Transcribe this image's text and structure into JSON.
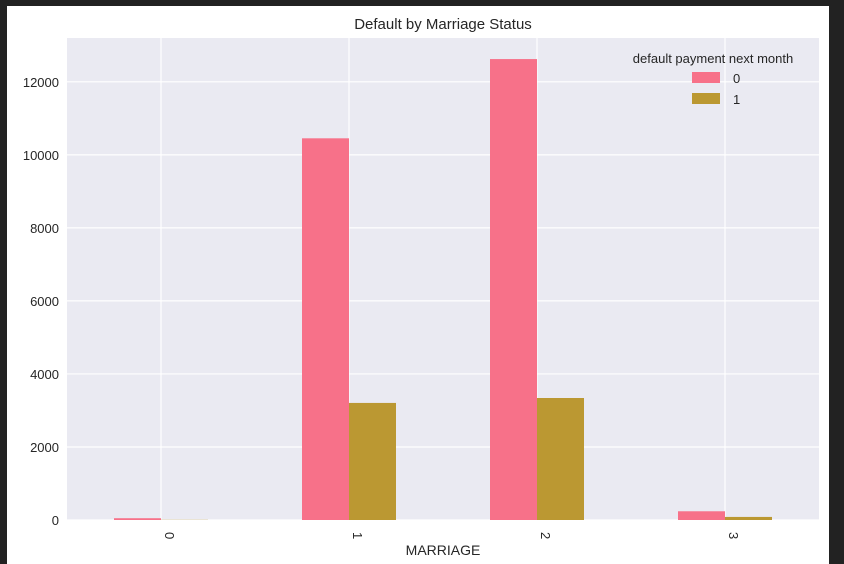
{
  "chart_data": {
    "type": "bar",
    "title": "Default by Marriage Status",
    "xlabel": "MARRIAGE",
    "ylabel": "",
    "categories": [
      "0",
      "1",
      "2",
      "3"
    ],
    "series": [
      {
        "name": "0",
        "values": [
          49,
          10453,
          12623,
          239
        ]
      },
      {
        "name": "1",
        "values": [
          5,
          3206,
          3341,
          84
        ]
      }
    ],
    "ylim": [
      0,
      13200
    ],
    "yticks": [
      0,
      2000,
      4000,
      6000,
      8000,
      10000,
      12000
    ],
    "grid": true,
    "legend": {
      "title": "default payment next month",
      "placement": "top-right"
    },
    "colors": {
      "series": [
        "#f77189",
        "#bb9832"
      ],
      "plot_background": "#eaeaf2",
      "grid": "#ffffff",
      "text": "#262626"
    }
  }
}
